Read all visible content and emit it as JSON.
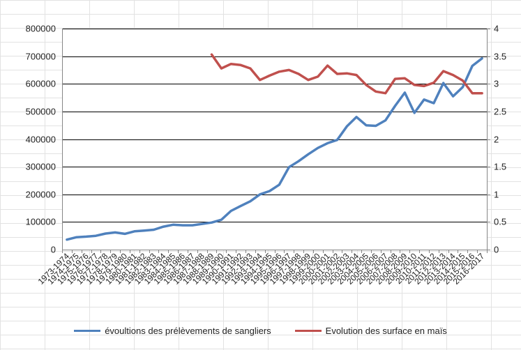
{
  "chart_data": {
    "type": "line",
    "title": "",
    "grid": true,
    "legend_position": "bottom",
    "categories": [
      "1973-1974",
      "1974-1975",
      "1975-1976",
      "1976-1977",
      "1977-1978",
      "1978-1979",
      "1979-1980",
      "1980-1981",
      "1981-1982",
      "1982-1983",
      "1983-1984",
      "1984-1985",
      "1985-1986",
      "1986-1987",
      "1987-1988",
      "1988-1989",
      "1989-1990",
      "1990-1991",
      "1991-1992",
      "1992-1993",
      "1993-1994",
      "1994-1995",
      "1995-1996",
      "1996-1997",
      "1997-1998",
      "1998-1999",
      "1999-2000",
      "2000-2001",
      "2001-2002",
      "2002-2003",
      "2003-2004",
      "2004-2005",
      "2005-2006",
      "2006-2007",
      "2007-2008",
      "2008-2009",
      "2009-2010",
      "2010-2011",
      "2011-2012",
      "2012-2013",
      "2013-2014",
      "2014-2015",
      "2015-2016",
      "2016-2017"
    ],
    "y_left": {
      "range": [
        0,
        800000
      ],
      "ticks": [
        "0",
        "100000",
        "200000",
        "300000",
        "400000",
        "500000",
        "600000",
        "700000",
        "800000"
      ],
      "tick_values": [
        0,
        100000,
        200000,
        300000,
        400000,
        500000,
        600000,
        700000,
        800000
      ]
    },
    "y_right": {
      "range": [
        0,
        4
      ],
      "ticks": [
        "0",
        "0.5",
        "1",
        "1.5",
        "2",
        "2.5",
        "3",
        "3.5",
        "4"
      ],
      "tick_values": [
        0,
        0.5,
        1,
        1.5,
        2,
        2.5,
        3,
        3.5,
        4
      ]
    },
    "series": [
      {
        "name": "évoultions des prélèvements de sangliers",
        "axis": "left",
        "color": "#4f81bd",
        "values": [
          36000,
          45000,
          47000,
          50000,
          58000,
          62000,
          57000,
          66000,
          69000,
          72000,
          83000,
          90000,
          88000,
          88000,
          93000,
          98000,
          108000,
          140000,
          158000,
          175000,
          200000,
          212000,
          235000,
          298000,
          320000,
          345000,
          368000,
          385000,
          397000,
          446000,
          480000,
          450000,
          448000,
          468000,
          520000,
          568000,
          495000,
          543000,
          530000,
          603000,
          555000,
          588000,
          665000,
          692000
        ]
      },
      {
        "name": "Evolution des surface en maïs",
        "axis": "right",
        "color": "#c0504d",
        "values": [
          null,
          null,
          null,
          null,
          null,
          null,
          null,
          null,
          null,
          null,
          null,
          null,
          null,
          null,
          null,
          3.53,
          3.28,
          3.36,
          3.34,
          3.28,
          3.07,
          3.15,
          3.22,
          3.25,
          3.18,
          3.07,
          3.13,
          3.33,
          3.18,
          3.19,
          3.16,
          2.98,
          2.86,
          2.83,
          3.09,
          3.1,
          2.98,
          2.96,
          3.02,
          3.23,
          3.16,
          3.06,
          2.83,
          2.83
        ]
      }
    ]
  }
}
